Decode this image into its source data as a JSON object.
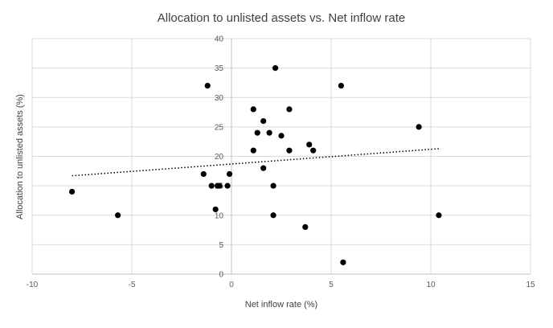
{
  "chart_data": {
    "type": "scatter",
    "title": "Allocation to unlisted assets vs. Net inflow rate",
    "xlabel": "Net inflow rate (%)",
    "ylabel": "Allocation to unlisted assets (%)",
    "xlim": [
      -10,
      15
    ],
    "ylim": [
      0,
      40
    ],
    "xticks": [
      -10,
      -5,
      0,
      5,
      10,
      15
    ],
    "yticks": [
      0,
      5,
      10,
      15,
      20,
      25,
      30,
      35,
      40
    ],
    "grid": true,
    "trendline": {
      "type": "linear",
      "from": [
        -8,
        16.7
      ],
      "to": [
        10.4,
        21.3
      ]
    },
    "points": [
      {
        "x": -8.0,
        "y": 14
      },
      {
        "x": -5.7,
        "y": 10
      },
      {
        "x": -1.2,
        "y": 32
      },
      {
        "x": -1.4,
        "y": 17
      },
      {
        "x": -1.0,
        "y": 15
      },
      {
        "x": -0.7,
        "y": 15
      },
      {
        "x": -0.6,
        "y": 15
      },
      {
        "x": -0.8,
        "y": 11
      },
      {
        "x": -0.2,
        "y": 15
      },
      {
        "x": -0.1,
        "y": 17
      },
      {
        "x": 1.1,
        "y": 28
      },
      {
        "x": 1.1,
        "y": 21
      },
      {
        "x": 1.3,
        "y": 24
      },
      {
        "x": 1.6,
        "y": 26
      },
      {
        "x": 1.6,
        "y": 18
      },
      {
        "x": 1.9,
        "y": 24
      },
      {
        "x": 2.1,
        "y": 15
      },
      {
        "x": 2.1,
        "y": 10
      },
      {
        "x": 2.2,
        "y": 35
      },
      {
        "x": 2.5,
        "y": 23.5
      },
      {
        "x": 2.9,
        "y": 28
      },
      {
        "x": 2.9,
        "y": 21
      },
      {
        "x": 3.7,
        "y": 8
      },
      {
        "x": 3.9,
        "y": 22
      },
      {
        "x": 4.1,
        "y": 21
      },
      {
        "x": 5.5,
        "y": 32
      },
      {
        "x": 5.6,
        "y": 2
      },
      {
        "x": 9.4,
        "y": 25
      },
      {
        "x": 10.4,
        "y": 10
      }
    ]
  }
}
